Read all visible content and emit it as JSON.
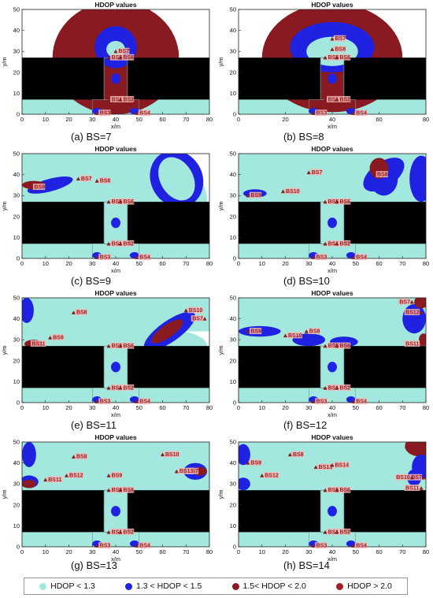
{
  "colors": {
    "lt13": "#a3e8de",
    "b13_15": "#1f22e0",
    "b15_20": "#8a1a21",
    "gt20": "#a31c2d",
    "building": "#000000",
    "corridor_edge": "#6b8f8a",
    "marker": "#8b1a1a",
    "label_bg": "#f2b7b7"
  },
  "legend": [
    {
      "label": "HDOP < 1.3",
      "color": "#a3e8de"
    },
    {
      "label": "1.3 < HDOP < 1.5",
      "color": "#1f22e0"
    },
    {
      "label": "1.5< HDOP < 2.0",
      "color": "#8a1a21"
    },
    {
      "label": "HDOP > 2.0",
      "color": "#a31c2d"
    }
  ],
  "chart_data": [
    {
      "type": "heatmap",
      "panel": "(a)",
      "caption": "(a)  BS=7",
      "title": "HDOP values",
      "xlabel": "x/m",
      "ylabel": "y/m",
      "xlim": [
        0,
        80
      ],
      "ylim": [
        0,
        50
      ],
      "xticks": [
        0,
        10,
        20,
        30,
        40,
        50,
        60,
        70,
        80
      ],
      "yticks": [
        0,
        10,
        20,
        30,
        40,
        50
      ],
      "stations": [
        {
          "name": "BS1",
          "x": 37,
          "y": 7
        },
        {
          "name": "BS2",
          "x": 42,
          "y": 7
        },
        {
          "name": "BS3",
          "x": 32,
          "y": 0.5
        },
        {
          "name": "BS4",
          "x": 49,
          "y": 0.5
        },
        {
          "name": "BS5",
          "x": 37,
          "y": 27
        },
        {
          "name": "BS6",
          "x": 42,
          "y": 27
        },
        {
          "name": "BS7",
          "x": 40,
          "y": 30
        }
      ]
    },
    {
      "type": "heatmap",
      "panel": "(b)",
      "caption": "(b)  BS=8",
      "title": "HDOP values",
      "xlabel": "x/m",
      "ylabel": "y/m",
      "xlim": [
        0,
        80
      ],
      "ylim": [
        0,
        50
      ],
      "xticks": [
        0,
        20,
        40,
        60,
        80
      ],
      "yticks": [
        0,
        10,
        20,
        30,
        40,
        50
      ],
      "stations": [
        {
          "name": "BS1",
          "x": 37,
          "y": 7
        },
        {
          "name": "BS2",
          "x": 42,
          "y": 7
        },
        {
          "name": "BS3",
          "x": 32,
          "y": 0.5
        },
        {
          "name": "BS4",
          "x": 49,
          "y": 0.5
        },
        {
          "name": "BS5",
          "x": 37,
          "y": 27
        },
        {
          "name": "BS6",
          "x": 42,
          "y": 27
        },
        {
          "name": "BS7",
          "x": 40,
          "y": 36
        },
        {
          "name": "BS8",
          "x": 40,
          "y": 31
        }
      ]
    },
    {
      "type": "heatmap",
      "panel": "(c)",
      "caption": "(c)  BS=9",
      "title": "HDOP values",
      "xlabel": "x/m",
      "ylabel": "y/m",
      "xlim": [
        0,
        80
      ],
      "ylim": [
        0,
        50
      ],
      "xticks": [
        0,
        10,
        20,
        30,
        40,
        50,
        60,
        70,
        80
      ],
      "yticks": [
        0,
        10,
        20,
        30,
        40,
        50
      ],
      "stations": [
        {
          "name": "BS1",
          "x": 37,
          "y": 7
        },
        {
          "name": "BS2",
          "x": 42,
          "y": 7
        },
        {
          "name": "BS3",
          "x": 32,
          "y": 0.5
        },
        {
          "name": "BS4",
          "x": 49,
          "y": 0.5
        },
        {
          "name": "BS5",
          "x": 37,
          "y": 27
        },
        {
          "name": "BS6",
          "x": 42,
          "y": 27
        },
        {
          "name": "BS7",
          "x": 24,
          "y": 38
        },
        {
          "name": "BS8",
          "x": 32,
          "y": 37
        },
        {
          "name": "BS9",
          "x": 4,
          "y": 34
        }
      ]
    },
    {
      "type": "heatmap",
      "panel": "(d)",
      "caption": "(d)  BS=10",
      "title": "HDOP values",
      "xlabel": "x/m",
      "ylabel": "y/m",
      "xlim": [
        0,
        80
      ],
      "ylim": [
        0,
        50
      ],
      "xticks": [
        0,
        10,
        20,
        30,
        40,
        50,
        60,
        70,
        80
      ],
      "yticks": [
        0,
        10,
        20,
        30,
        40,
        50
      ],
      "stations": [
        {
          "name": "BS1",
          "x": 37,
          "y": 7
        },
        {
          "name": "BS2",
          "x": 42,
          "y": 7
        },
        {
          "name": "BS3",
          "x": 32,
          "y": 0.5
        },
        {
          "name": "BS4",
          "x": 49,
          "y": 0.5
        },
        {
          "name": "BS5",
          "x": 37,
          "y": 27
        },
        {
          "name": "BS6",
          "x": 42,
          "y": 27
        },
        {
          "name": "BS7",
          "x": 30,
          "y": 41
        },
        {
          "name": "BS8",
          "x": 58,
          "y": 40
        },
        {
          "name": "BS9",
          "x": 4,
          "y": 30
        },
        {
          "name": "BS10",
          "x": 19,
          "y": 32
        }
      ]
    },
    {
      "type": "heatmap",
      "panel": "(e)",
      "caption": "(e)  BS=11",
      "title": "HDOP values",
      "xlabel": "x/m",
      "ylabel": "y/m",
      "xlim": [
        0,
        80
      ],
      "ylim": [
        0,
        50
      ],
      "xticks": [
        0,
        10,
        20,
        30,
        40,
        50,
        60,
        70,
        80
      ],
      "yticks": [
        0,
        10,
        20,
        30,
        40,
        50
      ],
      "stations": [
        {
          "name": "BS1",
          "x": 37,
          "y": 7
        },
        {
          "name": "BS2",
          "x": 42,
          "y": 7
        },
        {
          "name": "BS3",
          "x": 32,
          "y": 0.5
        },
        {
          "name": "BS4",
          "x": 49,
          "y": 0.5
        },
        {
          "name": "BS5",
          "x": 37,
          "y": 27
        },
        {
          "name": "BS6",
          "x": 42,
          "y": 27
        },
        {
          "name": "BS7",
          "x": 78,
          "y": 40
        },
        {
          "name": "BS8",
          "x": 22,
          "y": 43
        },
        {
          "name": "BS9",
          "x": 12,
          "y": 31
        },
        {
          "name": "BS10",
          "x": 70,
          "y": 44
        },
        {
          "name": "BS11",
          "x": 3,
          "y": 28
        }
      ]
    },
    {
      "type": "heatmap",
      "panel": "(f)",
      "caption": "(f)  BS=12",
      "title": "HDOP values",
      "xlabel": "x/m",
      "ylabel": "y/m",
      "xlim": [
        0,
        80
      ],
      "ylim": [
        0,
        50
      ],
      "xticks": [
        0,
        10,
        20,
        30,
        40,
        50,
        60,
        70,
        80
      ],
      "yticks": [
        0,
        10,
        20,
        30,
        40,
        50
      ],
      "stations": [
        {
          "name": "BS1",
          "x": 37,
          "y": 7
        },
        {
          "name": "BS2",
          "x": 42,
          "y": 7
        },
        {
          "name": "BS3",
          "x": 32,
          "y": 0.5
        },
        {
          "name": "BS4",
          "x": 49,
          "y": 0.5
        },
        {
          "name": "BS5",
          "x": 37,
          "y": 27
        },
        {
          "name": "BS6",
          "x": 42,
          "y": 27
        },
        {
          "name": "BS7",
          "x": 74,
          "y": 48
        },
        {
          "name": "BS8",
          "x": 29,
          "y": 34
        },
        {
          "name": "BS9",
          "x": 4,
          "y": 34
        },
        {
          "name": "BS10",
          "x": 20,
          "y": 32
        },
        {
          "name": "BS11",
          "x": 78,
          "y": 28
        },
        {
          "name": "BS12",
          "x": 78,
          "y": 43
        }
      ]
    },
    {
      "type": "heatmap",
      "panel": "(g)",
      "caption": "(g)  BS=13",
      "title": "HDOP values",
      "xlabel": "x/m",
      "ylabel": "y/m",
      "xlim": [
        0,
        80
      ],
      "ylim": [
        0,
        50
      ],
      "xticks": [
        0,
        10,
        20,
        30,
        40,
        50,
        60,
        70,
        80
      ],
      "yticks": [
        0,
        10,
        20,
        30,
        40,
        50
      ],
      "stations": [
        {
          "name": "BS1",
          "x": 37,
          "y": 7
        },
        {
          "name": "BS2",
          "x": 42,
          "y": 7
        },
        {
          "name": "BS3",
          "x": 32,
          "y": 0.5
        },
        {
          "name": "BS4",
          "x": 49,
          "y": 0.5
        },
        {
          "name": "BS5",
          "x": 37,
          "y": 27
        },
        {
          "name": "BS6",
          "x": 42,
          "y": 27
        },
        {
          "name": "BS7",
          "x": 76,
          "y": 36
        },
        {
          "name": "BS8",
          "x": 22,
          "y": 43
        },
        {
          "name": "BS9",
          "x": 37,
          "y": 34
        },
        {
          "name": "BS10",
          "x": 60,
          "y": 44
        },
        {
          "name": "BS11",
          "x": 10,
          "y": 32
        },
        {
          "name": "BS12",
          "x": 19,
          "y": 34
        },
        {
          "name": "BS13",
          "x": 66,
          "y": 36
        }
      ]
    },
    {
      "type": "heatmap",
      "panel": "(h)",
      "caption": "(h)  BS=14",
      "title": "HDOP values",
      "xlabel": "x/m",
      "ylabel": "y/m",
      "xlim": [
        0,
        80
      ],
      "ylim": [
        0,
        50
      ],
      "xticks": [
        0,
        10,
        20,
        30,
        40,
        50,
        60,
        70,
        80
      ],
      "yticks": [
        0,
        10,
        20,
        30,
        40,
        50
      ],
      "stations": [
        {
          "name": "BS1",
          "x": 37,
          "y": 7
        },
        {
          "name": "BS2",
          "x": 42,
          "y": 7
        },
        {
          "name": "BS3",
          "x": 32,
          "y": 0.5
        },
        {
          "name": "BS4",
          "x": 49,
          "y": 0.5
        },
        {
          "name": "BS5",
          "x": 37,
          "y": 27
        },
        {
          "name": "BS6",
          "x": 42,
          "y": 27
        },
        {
          "name": "BS7",
          "x": 79,
          "y": 33
        },
        {
          "name": "BS8",
          "x": 22,
          "y": 44
        },
        {
          "name": "BS9",
          "x": 4,
          "y": 40
        },
        {
          "name": "BS10",
          "x": 74,
          "y": 33
        },
        {
          "name": "BS11",
          "x": 78,
          "y": 28
        },
        {
          "name": "BS12",
          "x": 10,
          "y": 34
        },
        {
          "name": "BS13",
          "x": 33,
          "y": 38
        },
        {
          "name": "BS14",
          "x": 40,
          "y": 39
        }
      ]
    }
  ]
}
